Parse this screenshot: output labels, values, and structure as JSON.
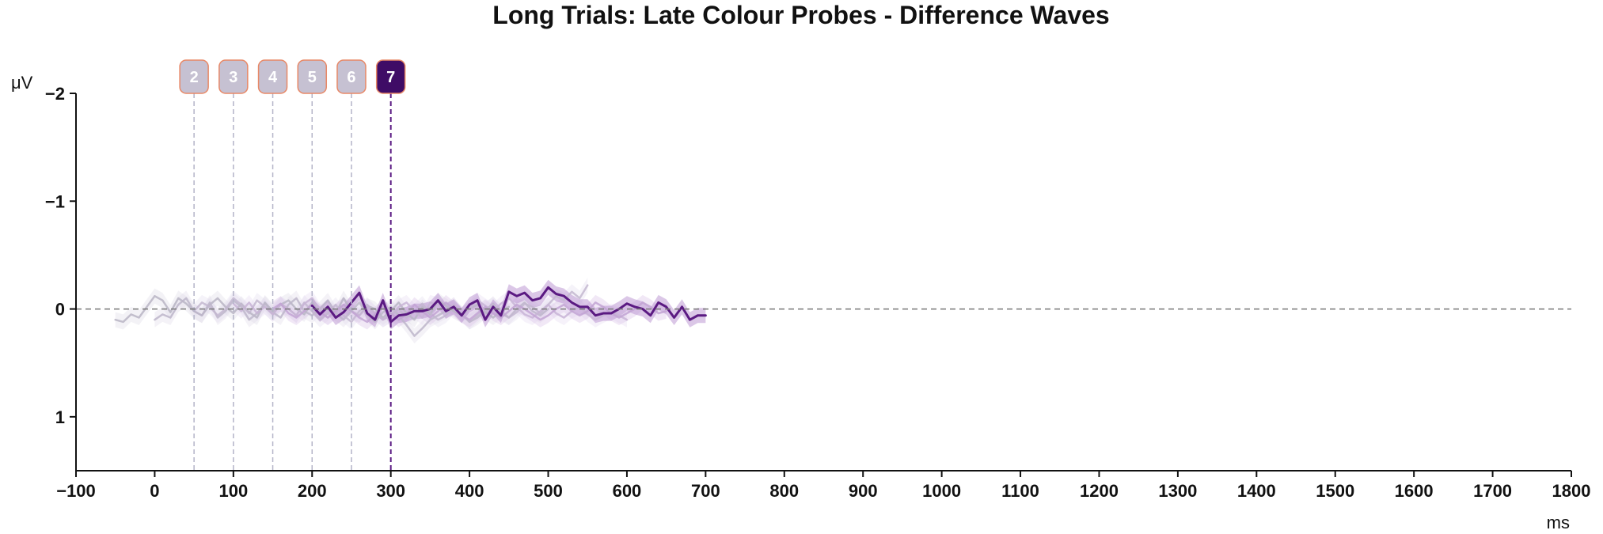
{
  "chart_data": {
    "type": "line",
    "title": "Long Trials: Late Colour Probes - Difference Waves",
    "xlabel": "ms",
    "ylabel": "μV",
    "xlim": [
      -100,
      1800
    ],
    "ylim": [
      1.5,
      -2
    ],
    "y_inverted": true,
    "xticks": [
      -100,
      0,
      100,
      200,
      300,
      400,
      500,
      600,
      700,
      800,
      900,
      1000,
      1100,
      1200,
      1300,
      1400,
      1500,
      1600,
      1700,
      1800
    ],
    "xtick_labels": [
      "−100",
      "0",
      "100",
      "200",
      "300",
      "400",
      "500",
      "600",
      "700",
      "800",
      "900",
      "1000",
      "1100",
      "1200",
      "1300",
      "1400",
      "1500",
      "1600",
      "1700",
      "1800"
    ],
    "yticks": [
      -2,
      -1,
      0,
      1
    ],
    "ytick_labels": [
      "−2",
      "−1",
      "0",
      "1"
    ],
    "zero_line": true,
    "grid": false,
    "probe_markers": [
      {
        "label": "2",
        "x": 50,
        "highlight": false
      },
      {
        "label": "3",
        "x": 100,
        "highlight": false
      },
      {
        "label": "4",
        "x": 150,
        "highlight": false
      },
      {
        "label": "5",
        "x": 200,
        "highlight": false
      },
      {
        "label": "6",
        "x": 250,
        "highlight": false
      },
      {
        "label": "7",
        "x": 300,
        "highlight": true
      }
    ],
    "series": [
      {
        "x": [
          -50,
          -40,
          -30,
          -20,
          -10,
          0,
          10,
          20,
          30,
          40,
          50,
          60,
          70,
          80,
          90,
          100,
          110,
          120,
          130,
          140,
          150,
          160,
          170,
          180,
          190,
          200,
          210,
          220,
          230,
          240,
          250,
          260,
          270,
          280,
          290,
          300,
          310,
          320,
          330,
          340,
          350,
          360,
          370,
          380,
          390,
          400,
          410,
          420,
          430,
          440,
          450
        ],
        "y": [
          0.1,
          0.12,
          0.05,
          0.08,
          -0.02,
          -0.12,
          -0.08,
          0.03,
          -0.1,
          -0.05,
          0.02,
          0.06,
          -0.04,
          -0.1,
          -0.02,
          0.04,
          -0.05,
          0.03,
          0.08,
          -0.06,
          0.02,
          -0.04,
          -0.08,
          0.0,
          0.05,
          -0.06,
          0.03,
          -0.02,
          0.04,
          -0.1,
          0.02,
          0.06,
          -0.03,
          0.0,
          0.08,
          0.02,
          -0.06,
          0.04,
          0.1,
          -0.02,
          0.05,
          -0.08,
          -0.03,
          0.02,
          0.06,
          0.0,
          -0.04,
          0.03,
          0.08,
          0.02,
          -0.02
        ]
      },
      {
        "x": [
          0,
          10,
          20,
          30,
          40,
          50,
          60,
          70,
          80,
          90,
          100,
          110,
          120,
          130,
          140,
          150,
          160,
          170,
          180,
          190,
          200,
          210,
          220,
          230,
          240,
          250,
          260,
          270,
          280,
          290,
          300,
          310,
          320,
          330,
          340,
          350,
          360,
          370,
          380,
          390,
          400,
          410,
          420,
          430,
          440,
          450,
          460,
          470,
          480,
          490,
          500
        ],
        "y": [
          0.1,
          0.05,
          0.08,
          -0.04,
          -0.1,
          0.02,
          0.06,
          -0.06,
          0.08,
          0.02,
          -0.08,
          -0.02,
          0.1,
          0.04,
          -0.05,
          0.03,
          0.08,
          -0.04,
          -0.1,
          0.02,
          0.06,
          0.0,
          -0.08,
          0.04,
          0.1,
          0.02,
          -0.06,
          0.05,
          0.12,
          0.03,
          -0.02,
          0.06,
          0.15,
          0.25,
          0.18,
          0.1,
          0.06,
          0.02,
          -0.04,
          0.05,
          0.12,
          0.08,
          0.02,
          -0.05,
          0.04,
          0.08,
          0.0,
          -0.06,
          0.02,
          0.06,
          0.0
        ]
      },
      {
        "x": [
          50,
          60,
          70,
          80,
          90,
          100,
          110,
          120,
          130,
          140,
          150,
          160,
          170,
          180,
          190,
          200,
          210,
          220,
          230,
          240,
          250,
          260,
          270,
          280,
          290,
          300,
          310,
          320,
          330,
          340,
          350,
          360,
          370,
          380,
          390,
          400,
          410,
          420,
          430,
          440,
          450,
          460,
          470,
          480,
          490,
          500,
          510,
          520,
          530,
          540,
          550
        ],
        "y": [
          0.02,
          -0.06,
          -0.02,
          0.06,
          0.0,
          -0.1,
          -0.04,
          0.04,
          -0.08,
          -0.02,
          0.05,
          -0.05,
          0.0,
          0.06,
          -0.06,
          0.02,
          0.1,
          0.04,
          -0.04,
          0.06,
          0.12,
          0.02,
          -0.04,
          0.04,
          0.1,
          0.06,
          0.0,
          0.08,
          0.02,
          -0.05,
          0.04,
          0.1,
          0.06,
          -0.02,
          0.04,
          0.12,
          0.06,
          0.0,
          -0.04,
          0.02,
          0.08,
          0.03,
          -0.05,
          -0.02,
          0.04,
          -0.04,
          -0.12,
          -0.08,
          -0.16,
          -0.1,
          -0.22
        ]
      },
      {
        "x": [
          100,
          110,
          120,
          130,
          140,
          150,
          160,
          170,
          180,
          190,
          200,
          210,
          220,
          230,
          240,
          250,
          260,
          270,
          280,
          290,
          300,
          310,
          320,
          330,
          340,
          350,
          360,
          370,
          380,
          390,
          400,
          410,
          420,
          430,
          440,
          450,
          460,
          470,
          480,
          490,
          500,
          510,
          520,
          530,
          540,
          550,
          560,
          570,
          580,
          590,
          600
        ],
        "y": [
          -0.05,
          0.02,
          -0.06,
          0.04,
          -0.02,
          0.05,
          -0.04,
          0.0,
          0.06,
          -0.05,
          -0.1,
          0.02,
          0.08,
          0.03,
          -0.04,
          0.02,
          0.06,
          -0.02,
          0.04,
          0.1,
          0.05,
          -0.02,
          -0.06,
          0.02,
          0.08,
          -0.06,
          -0.04,
          0.02,
          -0.04,
          0.06,
          0.0,
          -0.08,
          -0.03,
          0.02,
          -0.05,
          -0.1,
          -0.02,
          0.05,
          0.08,
          0.02,
          -0.04,
          0.04,
          0.08,
          0.02,
          -0.02,
          0.05,
          0.1,
          0.06,
          0.02,
          0.06,
          0.1
        ]
      },
      {
        "x": [
          150,
          160,
          170,
          180,
          190,
          200,
          210,
          220,
          230,
          240,
          250,
          260,
          270,
          280,
          290,
          300,
          310,
          320,
          330,
          340,
          350,
          360,
          370,
          380,
          390,
          400,
          410,
          420,
          430,
          440,
          450,
          460,
          470,
          480,
          490,
          500,
          510,
          520,
          530,
          540,
          550,
          560,
          570,
          580,
          590,
          600,
          610,
          620,
          630,
          640,
          650
        ],
        "y": [
          0.0,
          -0.05,
          0.04,
          0.08,
          0.02,
          -0.04,
          0.03,
          0.08,
          0.02,
          -0.04,
          0.02,
          0.08,
          0.12,
          0.05,
          -0.02,
          0.04,
          0.1,
          0.05,
          -0.04,
          0.02,
          0.08,
          0.02,
          -0.06,
          0.0,
          0.06,
          0.1,
          0.04,
          -0.02,
          0.04,
          0.08,
          0.02,
          -0.04,
          0.0,
          0.05,
          0.1,
          0.06,
          0.0,
          -0.04,
          0.02,
          0.06,
          0.02,
          -0.06,
          -0.02,
          0.04,
          0.08,
          0.04,
          0.0,
          -0.06,
          -0.02,
          0.04,
          0.02
        ]
      },
      {
        "x": [
          200,
          210,
          220,
          230,
          240,
          250,
          260,
          270,
          280,
          290,
          300,
          310,
          320,
          330,
          340,
          350,
          360,
          370,
          380,
          390,
          400,
          410,
          420,
          430,
          440,
          450,
          460,
          470,
          480,
          490,
          500,
          510,
          520,
          530,
          540,
          550,
          560,
          570,
          580,
          590,
          600,
          610,
          620,
          630,
          640,
          650,
          660,
          670,
          680,
          690,
          700
        ],
        "y": [
          -0.03,
          0.05,
          -0.02,
          0.08,
          0.03,
          -0.06,
          -0.15,
          0.04,
          0.1,
          -0.08,
          0.12,
          0.06,
          0.05,
          0.02,
          0.02,
          0.0,
          -0.08,
          0.02,
          -0.02,
          0.06,
          -0.04,
          -0.08,
          0.1,
          -0.02,
          0.06,
          -0.16,
          -0.12,
          -0.15,
          -0.08,
          -0.1,
          -0.2,
          -0.14,
          -0.12,
          -0.06,
          -0.02,
          -0.02,
          0.06,
          0.04,
          0.04,
          0.0,
          -0.05,
          -0.02,
          0.0,
          0.06,
          -0.06,
          -0.02,
          0.08,
          -0.02,
          0.1,
          0.06,
          0.06
        ]
      }
    ]
  }
}
